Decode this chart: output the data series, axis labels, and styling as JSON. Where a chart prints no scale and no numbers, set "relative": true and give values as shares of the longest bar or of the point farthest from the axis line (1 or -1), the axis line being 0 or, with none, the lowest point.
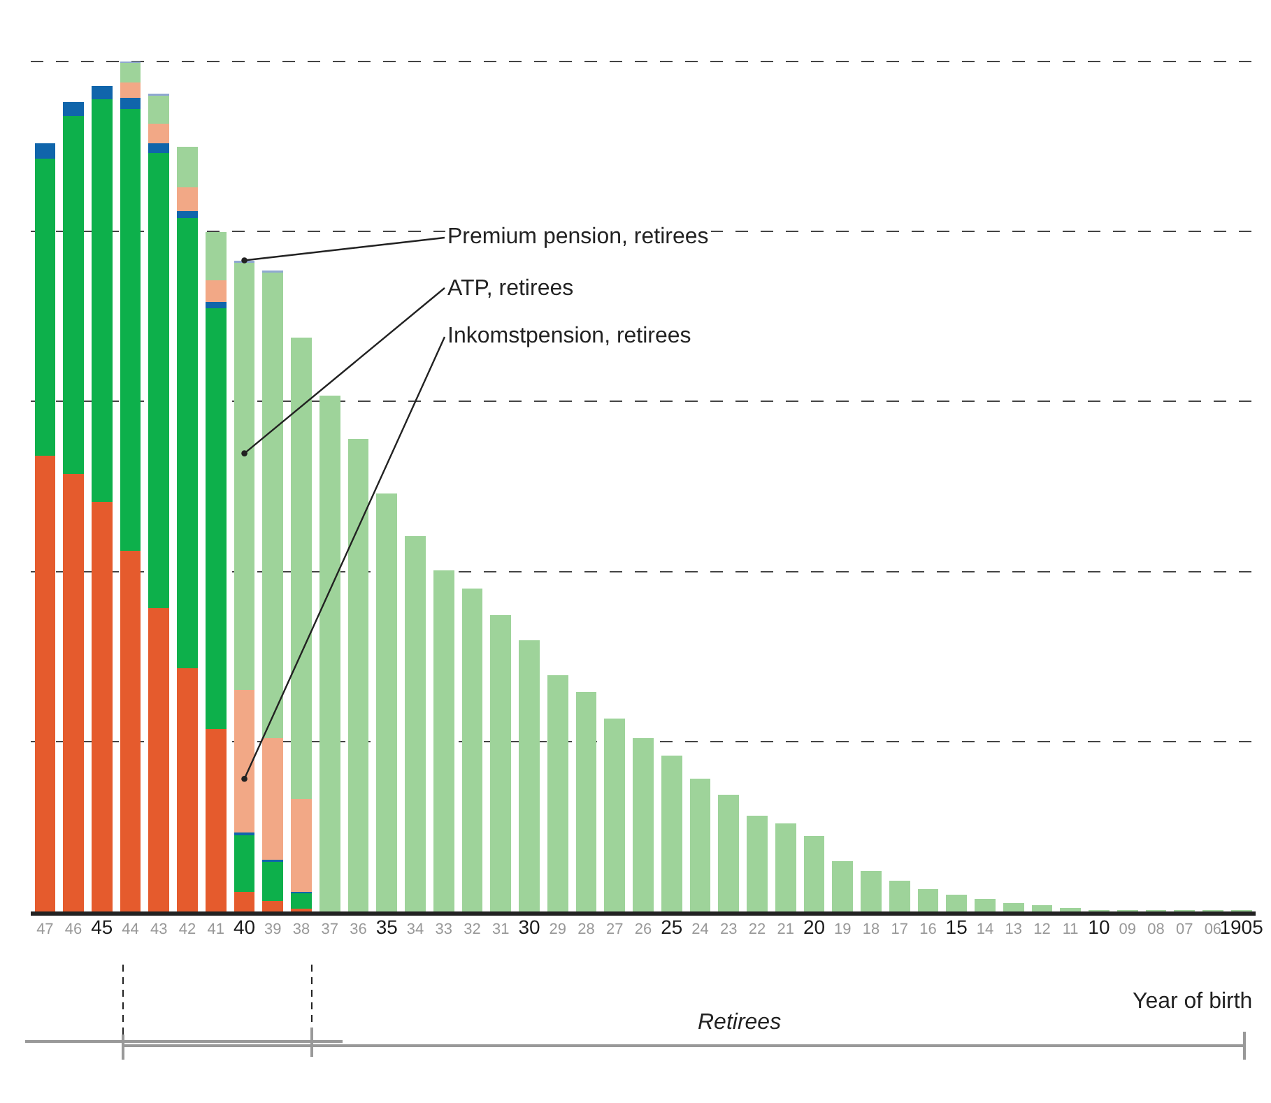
{
  "chart_data": {
    "type": "bar",
    "stacked": true,
    "relative": true,
    "grid": "y",
    "xlabel": "Year of birth",
    "categories": [
      "47",
      "46",
      "45",
      "44",
      "43",
      "42",
      "41",
      "40",
      "39",
      "38",
      "37",
      "36",
      "35",
      "34",
      "33",
      "32",
      "31",
      "30",
      "29",
      "28",
      "27",
      "26",
      "25",
      "24",
      "23",
      "22",
      "21",
      "20",
      "19",
      "18",
      "17",
      "16",
      "15",
      "14",
      "13",
      "12",
      "11",
      "10",
      "09",
      "08",
      "07",
      "06",
      "1905"
    ],
    "series": [
      {
        "color": "#e55b2d",
        "values": [
          0.536,
          0.515,
          0.482,
          0.424,
          0.357,
          0.286,
          0.215,
          0.023,
          0.012,
          0.003,
          null,
          null,
          null,
          null,
          null,
          null,
          null,
          null,
          null,
          null,
          null,
          null,
          null,
          null,
          null,
          null,
          null,
          null,
          null,
          null,
          null,
          null,
          null,
          null,
          null,
          null,
          null,
          null,
          null,
          null,
          null,
          null,
          null
        ]
      },
      {
        "color": "#0db04b",
        "values": [
          0.35,
          0.421,
          0.474,
          0.52,
          0.535,
          0.53,
          0.495,
          0.067,
          0.046,
          0.018,
          null,
          null,
          null,
          null,
          null,
          null,
          null,
          null,
          null,
          null,
          null,
          null,
          null,
          null,
          null,
          null,
          null,
          null,
          null,
          null,
          null,
          null,
          null,
          null,
          null,
          null,
          null,
          null,
          null,
          null,
          null,
          null,
          null
        ]
      },
      {
        "color": "#1065ab",
        "values": [
          0.018,
          0.016,
          0.015,
          0.013,
          0.012,
          0.008,
          0.007,
          0.003,
          0.003,
          0.002,
          null,
          null,
          null,
          null,
          null,
          null,
          null,
          null,
          null,
          null,
          null,
          null,
          null,
          null,
          null,
          null,
          null,
          null,
          null,
          null,
          null,
          null,
          null,
          null,
          null,
          null,
          null,
          null,
          null,
          null,
          null,
          null,
          null
        ]
      },
      {
        "color": "#f2a886",
        "values": [
          null,
          null,
          null,
          0.018,
          0.023,
          0.028,
          0.026,
          0.168,
          0.143,
          0.109,
          null,
          null,
          null,
          null,
          null,
          null,
          null,
          null,
          null,
          null,
          null,
          null,
          null,
          null,
          null,
          null,
          null,
          null,
          null,
          null,
          null,
          null,
          null,
          null,
          null,
          null,
          null,
          null,
          null,
          null,
          null,
          null,
          null
        ]
      },
      {
        "color": "#9ed39a",
        "values": [
          null,
          null,
          null,
          0.023,
          0.033,
          0.048,
          0.056,
          0.502,
          0.548,
          0.543,
          0.607,
          0.556,
          0.492,
          0.442,
          0.401,
          0.38,
          0.349,
          0.319,
          0.278,
          0.258,
          0.227,
          0.204,
          0.183,
          0.156,
          0.137,
          0.113,
          0.104,
          0.089,
          0.059,
          0.048,
          0.036,
          0.026,
          0.02,
          0.015,
          0.01,
          0.007,
          0.004,
          0.002,
          0.002,
          0.002,
          0.002,
          0.002,
          0.002
        ]
      },
      {
        "color": "#8fa8d0",
        "values": [
          null,
          null,
          null,
          0.002,
          0.002,
          null,
          null,
          0.003,
          0.002,
          null,
          null,
          null,
          null,
          null,
          null,
          null,
          null,
          null,
          null,
          null,
          null,
          null,
          null,
          null,
          null,
          null,
          null,
          null,
          null,
          null,
          null,
          null,
          null,
          null,
          null,
          null,
          null,
          null,
          null,
          null,
          null,
          null,
          null
        ]
      }
    ],
    "annotations": [
      {
        "text": "Premium pension, retirees",
        "x": "40",
        "y": 0.766
      },
      {
        "text": "ATP, retirees",
        "x": "40",
        "y": 0.539
      },
      {
        "text": "Inkomstpension, retirees",
        "x": "40",
        "y": 0.156
      },
      "Retirees"
    ]
  }
}
